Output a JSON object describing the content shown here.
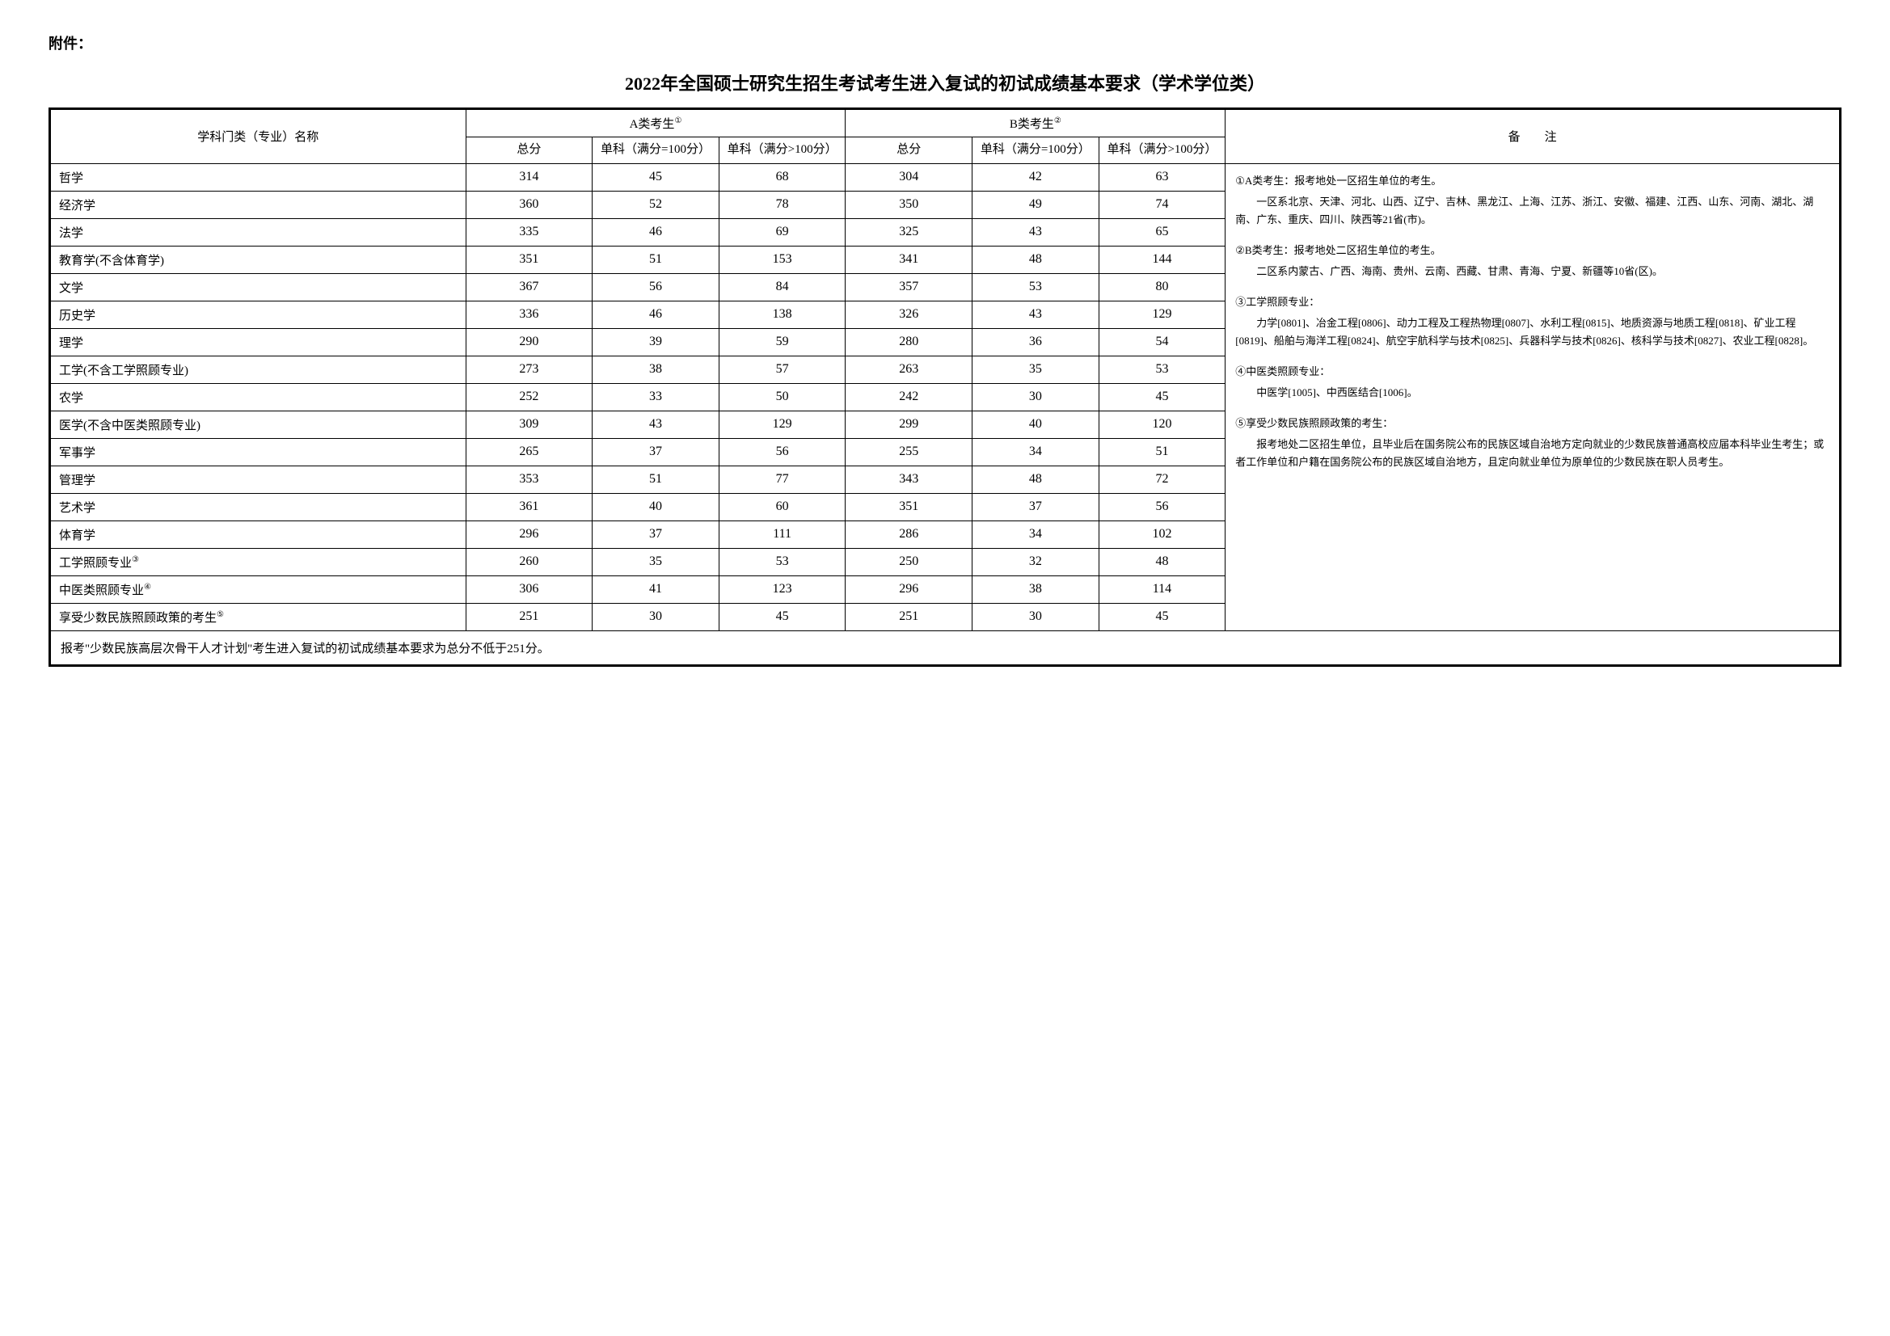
{
  "attachment": "附件：",
  "title": "2022年全国硕士研究生招生考试考生进入复试的初试成绩基本要求（学术学位类）",
  "headers": {
    "subject": "学科门类（专业）名称",
    "groupA": "A类考生",
    "groupA_sup": "①",
    "groupB": "B类考生",
    "groupB_sup": "②",
    "total": "总分",
    "single100": "单科（满分=100分）",
    "singleGt100": "单科（满分>100分）",
    "notes": "备　　注"
  },
  "rows": [
    {
      "name": "哲学",
      "a_total": "314",
      "a_s100": "45",
      "a_g100": "68",
      "b_total": "304",
      "b_s100": "42",
      "b_g100": "63"
    },
    {
      "name": "经济学",
      "a_total": "360",
      "a_s100": "52",
      "a_g100": "78",
      "b_total": "350",
      "b_s100": "49",
      "b_g100": "74"
    },
    {
      "name": "法学",
      "a_total": "335",
      "a_s100": "46",
      "a_g100": "69",
      "b_total": "325",
      "b_s100": "43",
      "b_g100": "65"
    },
    {
      "name": "教育学(不含体育学)",
      "a_total": "351",
      "a_s100": "51",
      "a_g100": "153",
      "b_total": "341",
      "b_s100": "48",
      "b_g100": "144"
    },
    {
      "name": "文学",
      "a_total": "367",
      "a_s100": "56",
      "a_g100": "84",
      "b_total": "357",
      "b_s100": "53",
      "b_g100": "80"
    },
    {
      "name": "历史学",
      "a_total": "336",
      "a_s100": "46",
      "a_g100": "138",
      "b_total": "326",
      "b_s100": "43",
      "b_g100": "129"
    },
    {
      "name": "理学",
      "a_total": "290",
      "a_s100": "39",
      "a_g100": "59",
      "b_total": "280",
      "b_s100": "36",
      "b_g100": "54"
    },
    {
      "name": "工学(不含工学照顾专业)",
      "a_total": "273",
      "a_s100": "38",
      "a_g100": "57",
      "b_total": "263",
      "b_s100": "35",
      "b_g100": "53"
    },
    {
      "name": "农学",
      "a_total": "252",
      "a_s100": "33",
      "a_g100": "50",
      "b_total": "242",
      "b_s100": "30",
      "b_g100": "45"
    },
    {
      "name": "医学(不含中医类照顾专业)",
      "a_total": "309",
      "a_s100": "43",
      "a_g100": "129",
      "b_total": "299",
      "b_s100": "40",
      "b_g100": "120"
    },
    {
      "name": "军事学",
      "a_total": "265",
      "a_s100": "37",
      "a_g100": "56",
      "b_total": "255",
      "b_s100": "34",
      "b_g100": "51"
    },
    {
      "name": "管理学",
      "a_total": "353",
      "a_s100": "51",
      "a_g100": "77",
      "b_total": "343",
      "b_s100": "48",
      "b_g100": "72"
    },
    {
      "name": "艺术学",
      "a_total": "361",
      "a_s100": "40",
      "a_g100": "60",
      "b_total": "351",
      "b_s100": "37",
      "b_g100": "56"
    },
    {
      "name": "体育学",
      "a_total": "296",
      "a_s100": "37",
      "a_g100": "111",
      "b_total": "286",
      "b_s100": "34",
      "b_g100": "102"
    },
    {
      "name": "工学照顾专业",
      "sup": "③",
      "a_total": "260",
      "a_s100": "35",
      "a_g100": "53",
      "b_total": "250",
      "b_s100": "32",
      "b_g100": "48"
    },
    {
      "name": "中医类照顾专业",
      "sup": "④",
      "a_total": "306",
      "a_s100": "41",
      "a_g100": "123",
      "b_total": "296",
      "b_s100": "38",
      "b_g100": "114"
    },
    {
      "name": "享受少数民族照顾政策的考生",
      "sup": "⑤",
      "a_total": "251",
      "a_s100": "30",
      "a_g100": "45",
      "b_total": "251",
      "b_s100": "30",
      "b_g100": "45"
    }
  ],
  "notes": {
    "n1_title": "①A类考生：报考地处一区招生单位的考生。",
    "n1_body": "　　一区系北京、天津、河北、山西、辽宁、吉林、黑龙江、上海、江苏、浙江、安徽、福建、江西、山东、河南、湖北、湖南、广东、重庆、四川、陕西等21省(市)。",
    "n2_title": "②B类考生：报考地处二区招生单位的考生。",
    "n2_body": "　　二区系内蒙古、广西、海南、贵州、云南、西藏、甘肃、青海、宁夏、新疆等10省(区)。",
    "n3_title": "③工学照顾专业：",
    "n3_body": "　　力学[0801]、冶金工程[0806]、动力工程及工程热物理[0807]、水利工程[0815]、地质资源与地质工程[0818]、矿业工程[0819]、船舶与海洋工程[0824]、航空宇航科学与技术[0825]、兵器科学与技术[0826]、核科学与技术[0827]、农业工程[0828]。",
    "n4_title": "④中医类照顾专业：",
    "n4_body": "　　中医学[1005]、中西医结合[1006]。",
    "n5_title": "⑤享受少数民族照顾政策的考生：",
    "n5_body": "　　报考地处二区招生单位，且毕业后在国务院公布的民族区域自治地方定向就业的少数民族普通高校应届本科毕业生考生；或者工作单位和户籍在国务院公布的民族区域自治地方，且定向就业单位为原单位的少数民族在职人员考生。"
  },
  "footer": "报考\"少数民族高层次骨干人才计划\"考生进入复试的初试成绩基本要求为总分不低于251分。"
}
